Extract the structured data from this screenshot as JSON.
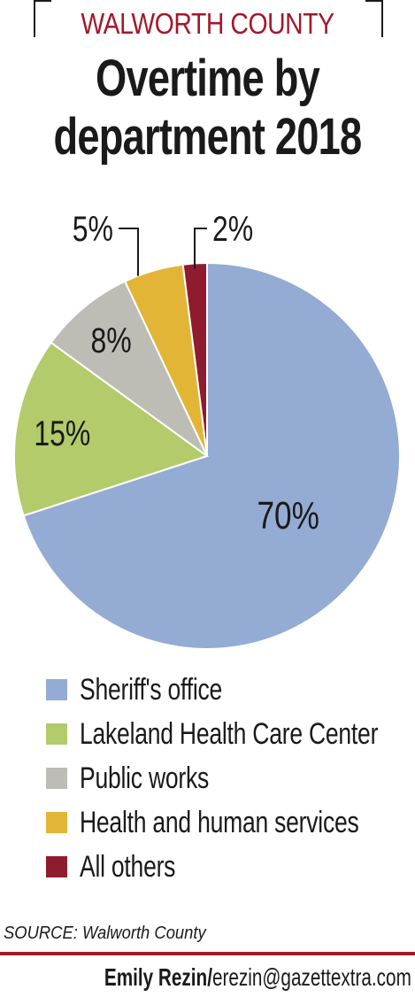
{
  "kicker": "WALWORTH COUNTY",
  "title_line1": "Overtime by",
  "title_line2": "department 2018",
  "chart_data": {
    "type": "pie",
    "title": "Overtime by department 2018",
    "slices": [
      {
        "label": "Sheriff's office",
        "value": 70,
        "value_label": "70%",
        "color": "#94abd3"
      },
      {
        "label": "Lakeland Health Care Center",
        "value": 15,
        "value_label": "15%",
        "color": "#b3cb6a"
      },
      {
        "label": "Public works",
        "value": 8,
        "value_label": "8%",
        "color": "#bdbcb5"
      },
      {
        "label": "Health and human services",
        "value": 5,
        "value_label": "5%",
        "color": "#e3b536"
      },
      {
        "label": "All others",
        "value": 2,
        "value_label": "2%",
        "color": "#8f1c2e"
      }
    ],
    "legend_position": "bottom"
  },
  "source": "SOURCE: Walworth County",
  "credit_name": "Emily Rezin/",
  "credit_email": "erezin@gazettextra.com"
}
